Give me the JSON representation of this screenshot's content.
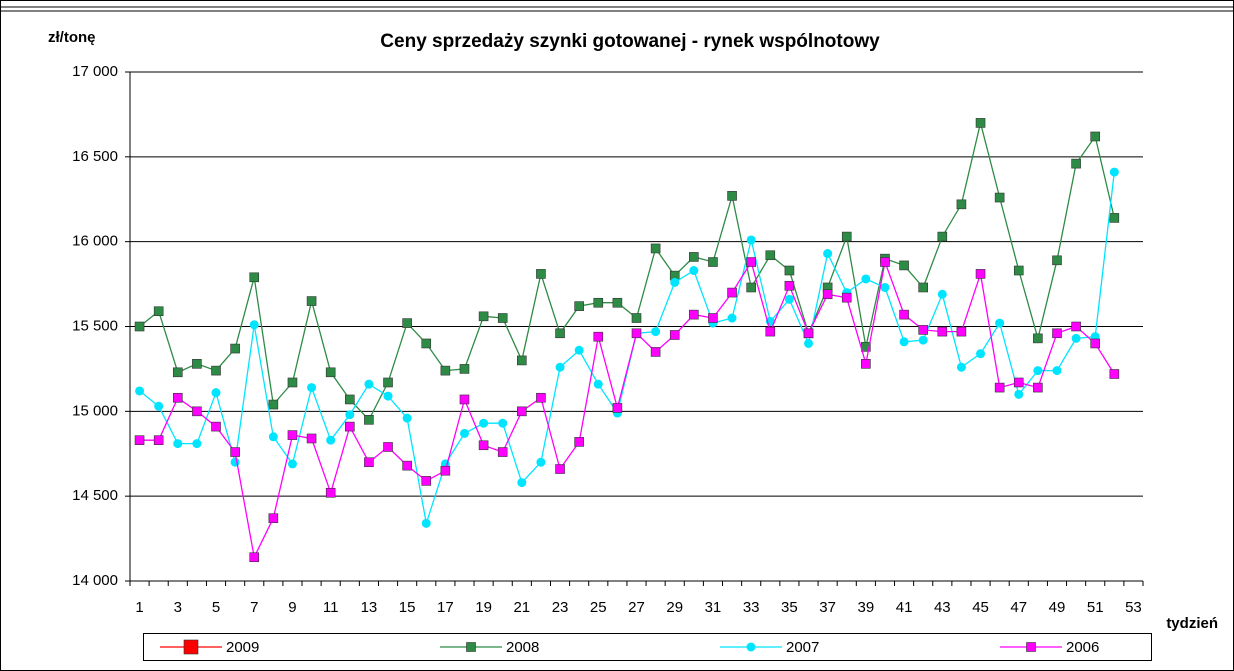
{
  "chart_data": {
    "type": "line",
    "title": "Ceny sprzedaży szynki gotowanej -  rynek wspólnotowy",
    "y_label": "zł/tonę",
    "x_label": "tydzień",
    "categories": [
      1,
      null,
      3,
      null,
      5,
      null,
      7,
      null,
      9,
      null,
      11,
      null,
      13,
      null,
      15,
      null,
      17,
      null,
      19,
      null,
      21,
      null,
      23,
      null,
      25,
      null,
      27,
      null,
      29,
      null,
      31,
      null,
      33,
      null,
      35,
      null,
      37,
      null,
      39,
      null,
      41,
      null,
      43,
      null,
      45,
      null,
      47,
      null,
      49,
      null,
      51,
      null,
      53
    ],
    "series": [
      {
        "name": "2009",
        "color": "#ff0000",
        "marker": "square",
        "values": [
          null,
          null,
          null,
          null,
          null,
          null,
          null,
          null,
          null,
          null,
          null,
          null,
          null,
          null,
          null,
          null,
          null,
          null,
          null,
          null,
          null,
          null,
          null,
          null,
          null,
          null,
          null,
          null,
          null,
          null,
          null,
          null,
          null,
          null,
          null,
          null,
          null,
          null,
          null,
          null,
          null,
          null,
          null,
          null,
          null,
          null,
          null,
          null,
          null,
          null,
          null,
          null,
          null
        ]
      },
      {
        "name": "2008",
        "color": "#2e8b46",
        "marker": "square",
        "values": [
          15500,
          15590,
          15230,
          15280,
          15240,
          15370,
          15790,
          15040,
          15170,
          15650,
          15230,
          15070,
          14950,
          15170,
          15520,
          15400,
          15240,
          15250,
          15560,
          15550,
          15300,
          15810,
          15460,
          15620,
          15640,
          15640,
          15550,
          15960,
          15800,
          15910,
          15880,
          16270,
          15730,
          15920,
          15830,
          15460,
          15730,
          16030,
          15380,
          15900,
          15860,
          15730,
          16030,
          16220,
          16700,
          16260,
          15830,
          15430,
          15890,
          16460,
          16620,
          16140,
          null
        ]
      },
      {
        "name": "2007",
        "color": "#00e5ff",
        "marker": "circle",
        "values": [
          15120,
          15030,
          14810,
          14810,
          15110,
          14700,
          15510,
          14850,
          14690,
          15140,
          14830,
          14980,
          15160,
          15090,
          14960,
          14340,
          14690,
          14870,
          14930,
          14930,
          14580,
          14700,
          15260,
          15360,
          15160,
          14990,
          15460,
          15470,
          15760,
          15830,
          15520,
          15550,
          16010,
          15530,
          15660,
          15400,
          15930,
          15700,
          15780,
          15730,
          15410,
          15420,
          15690,
          15260,
          15340,
          15520,
          15100,
          15240,
          15240,
          15430,
          15440,
          16410,
          null
        ]
      },
      {
        "name": "2006",
        "color": "#ff00ff",
        "marker": "square",
        "values": [
          14830,
          14830,
          15080,
          15000,
          14910,
          14760,
          14140,
          14370,
          14860,
          14840,
          14520,
          14910,
          14700,
          14790,
          14680,
          14590,
          14650,
          15070,
          14800,
          14760,
          15000,
          15080,
          14660,
          14820,
          15440,
          15020,
          15460,
          15350,
          15450,
          15570,
          15550,
          15700,
          15880,
          15470,
          15740,
          15460,
          15690,
          15670,
          15280,
          15880,
          15570,
          15480,
          15470,
          15470,
          15810,
          15140,
          15170,
          15140,
          15460,
          15500,
          15400,
          15220,
          null
        ]
      }
    ],
    "ylim": [
      14000,
      17000
    ],
    "yticks": [
      {
        "value": 14000,
        "label": "14 000"
      },
      {
        "value": 14500,
        "label": "14 500"
      },
      {
        "value": 15000,
        "label": "15 000"
      },
      {
        "value": 15500,
        "label": "15 500"
      },
      {
        "value": 16000,
        "label": "16 000"
      },
      {
        "value": 16500,
        "label": "16 500"
      },
      {
        "value": 17000,
        "label": "17 000"
      }
    ],
    "grid": true,
    "legend": "bottom"
  }
}
